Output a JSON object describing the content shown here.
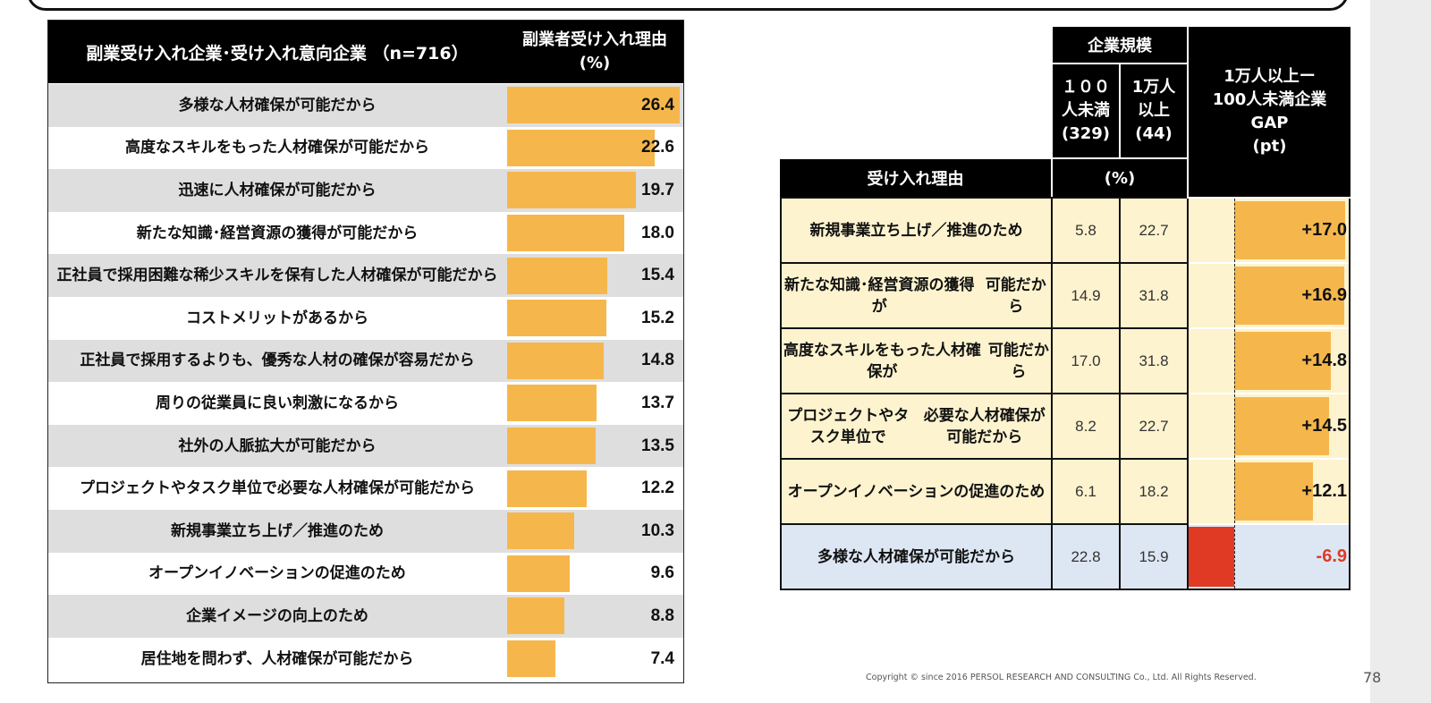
{
  "left_table": {
    "header_left": "副業受け入れ企業･受け入れ意向企業 （n=716）",
    "header_right_line1": "副業者受け入れ理由",
    "header_right_line2": "(%)"
  },
  "right_table": {
    "header_company_size": "企業規模",
    "col_small_line1": "１００",
    "col_small_line2": "人未満",
    "col_small_line3": "(329)",
    "col_large_line1": "1万人",
    "col_large_line2": "以上",
    "col_large_line3": "(44)",
    "gap_line1": "1万人以上ー",
    "gap_line2": "100人未満企業",
    "gap_line3": "GAP",
    "gap_line4": "(pt)",
    "reason_header": "受け入れ理由",
    "percent_header": "(%)"
  },
  "chart_data": [
    {
      "type": "bar",
      "title": "副業受け入れ企業･受け入れ意向企業 （n=716）",
      "ylabel": "副業者受け入れ理由 (%)",
      "xlim": [
        0,
        27
      ],
      "categories": [
        "多様な人材確保が可能だから",
        "高度なスキルをもった人材確保が可能だから",
        "迅速に人材確保が可能だから",
        "新たな知識･経営資源の獲得が可能だから",
        "正社員で採用困難な稀少スキルを保有した人材確保が可能だから",
        "コストメリットがあるから",
        "正社員で採用するよりも、優秀な人材の確保が容易だから",
        "周りの従業員に良い刺激になるから",
        "社外の人脈拡大が可能だから",
        "プロジェクトやタスク単位で必要な人材確保が可能だから",
        "新規事業立ち上げ／推進のため",
        "オープンイノベーションの促進のため",
        "企業イメージの向上のため",
        "居住地を問わず、人材確保が可能だから"
      ],
      "display_labels": [
        [
          "多様な人材確保が可能だから"
        ],
        [
          "高度なスキルをもった人材確保が可能だから"
        ],
        [
          "迅速に人材確保が可能だから"
        ],
        [
          "新たな知識･経営資源の獲得が可能だから"
        ],
        [
          "正社員で採用困難な稀少スキルを保有した人材確保が",
          "可能だから"
        ],
        [
          "コストメリットがあるから"
        ],
        [
          "正社員で採用するよりも、優秀な人材の確保が容易だから"
        ],
        [
          "周りの従業員に良い刺激になるから"
        ],
        [
          "社外の人脈拡大が可能だから"
        ],
        [
          "プロジェクトやタスク単位で必要な人材確保が可能だから"
        ],
        [
          "新規事業立ち上げ／推進のため"
        ],
        [
          "オープンイノベーションの促進のため"
        ],
        [
          "企業イメージの向上のため"
        ],
        [
          "居住地を問わず、人材確保が可能だから"
        ]
      ],
      "values": [
        26.4,
        22.6,
        19.7,
        18.0,
        15.4,
        15.2,
        14.8,
        13.7,
        13.5,
        12.2,
        10.3,
        9.6,
        8.8,
        7.4
      ],
      "value_labels": [
        "26.4",
        "22.6",
        "19.7",
        "18.0",
        "15.4",
        "15.2",
        "14.8",
        "13.7",
        "13.5",
        "12.2",
        "10.3",
        "9.6",
        "8.8",
        "7.4"
      ],
      "bar_color": "#f5b74c"
    },
    {
      "type": "table",
      "columns": [
        "受け入れ理由",
        "１００人未満(329)",
        "1万人以上(44)",
        "1万人以上ー100人未満企業GAP(pt)"
      ],
      "xlim": [
        -7,
        17.3
      ],
      "rows": [
        {
          "label": [
            "新規事業立ち上げ／推進のため"
          ],
          "small": "5.8",
          "large": "22.7",
          "gap": 17.0,
          "gap_label": "+17.0",
          "highlight": "yellow"
        },
        {
          "label": [
            "新たな知識･経営資源の獲得が",
            "可能だから"
          ],
          "small": "14.9",
          "large": "31.8",
          "gap": 16.9,
          "gap_label": "+16.9",
          "highlight": "yellow"
        },
        {
          "label": [
            "高度なスキルをもった人材確保が",
            "可能だから"
          ],
          "small": "17.0",
          "large": "31.8",
          "gap": 14.8,
          "gap_label": "+14.8",
          "highlight": "yellow"
        },
        {
          "label": [
            "プロジェクトやタスク単位で",
            "必要な人材確保が可能だから"
          ],
          "small": "8.2",
          "large": "22.7",
          "gap": 14.5,
          "gap_label": "+14.5",
          "highlight": "yellow"
        },
        {
          "label": [
            "オープンイノベーションの促進のため"
          ],
          "small": "6.1",
          "large": "18.2",
          "gap": 12.1,
          "gap_label": "+12.1",
          "highlight": "yellow"
        },
        {
          "label": [
            "多様な人材確保が可能だから"
          ],
          "small": "22.8",
          "large": "15.9",
          "gap": -6.9,
          "gap_label": "-6.9",
          "highlight": "blue"
        }
      ],
      "positive_color": "#f5b74c",
      "negative_color": "#e03a25"
    }
  ],
  "footer": {
    "copyright": "Copyright © since 2016 PERSOL RESEARCH AND CONSULTING Co., Ltd. All Rights Reserved.",
    "page_number": "78"
  }
}
